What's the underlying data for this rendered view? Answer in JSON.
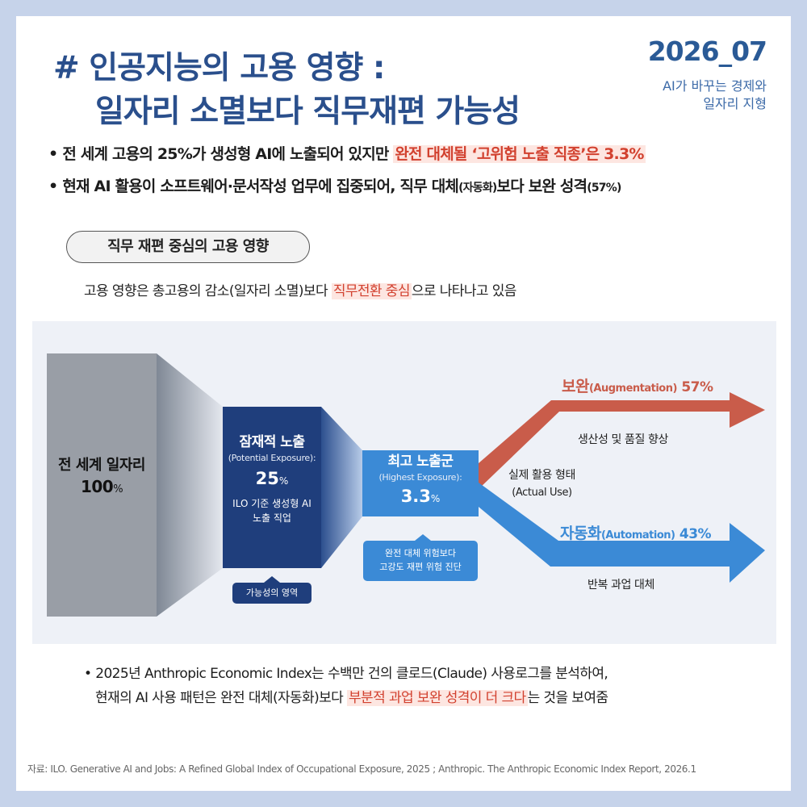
{
  "header": {
    "title_line1": "# 인공지능의 고용 영향 :",
    "title_line2": "일자리 소멸보다 직무재편 가능성",
    "date": "2026_07",
    "series_line1": "AI가 바꾸는 경제와",
    "series_line2": "일자리 지형"
  },
  "bullets": {
    "b1_prefix": "전 세계 고용의 25%가 생성형 AI에 노출되어 있지만 ",
    "b1_highlight": "완전 대체될 ‘고위험 노출 직종’은 3.3%",
    "b2_a": "현재 AI 활용이 소프트웨어·문서작성 업무에 집중되어, 직무 대체",
    "b2_small1": "(자동화)",
    "b2_b": "보다 보완 성격",
    "b2_small2": "(57%)"
  },
  "section": {
    "pill": "직무 재편 중심의 고용 영향",
    "desc_prefix": "고용 영향은 총고용의 감소(일자리 소멸)보다 ",
    "desc_highlight": "직무전환 중심",
    "desc_suffix": "으로 나타나고 있음"
  },
  "diagram": {
    "colors": {
      "gray": "#999ea6",
      "navy": "#1f3e7c",
      "blue": "#3b8ad6",
      "red": "#c95c4a"
    },
    "total": {
      "title": "전 세계 일자리",
      "value": "100",
      "unit": "%"
    },
    "potential": {
      "title": "잠재적 노출",
      "sub": "(Potential Exposure):",
      "value": "25",
      "unit": "%",
      "note1": "ILO 기준 생성형 AI",
      "note2": "노출 직업",
      "callout": "가능성의 영역"
    },
    "highest": {
      "title": "최고 노출군",
      "sub": "(Highest Exposure):",
      "value": "3.3",
      "unit": "%",
      "callout1": "완전 대체 위험보다",
      "callout2": "고강도 재편 위험 진단"
    },
    "actual_use1": "실제 활용 형태",
    "actual_use2": "(Actual Use)",
    "augmentation": {
      "main": "보완",
      "en": "(Augmentation)",
      "pct": " 57%",
      "desc": "생산성 및 품질 향상"
    },
    "automation": {
      "main": "자동화",
      "en": "(Automation)",
      "pct": " 43%",
      "desc": "반복 과업 대체"
    }
  },
  "outro": {
    "line1": "2025년 Anthropic Economic Index는 수백만 건의 클로드(Claude) 사용로그를 분석하여,",
    "line2_prefix": "현재의 AI 사용 패턴은 완전 대체(자동화)보다 ",
    "line2_highlight": "부분적 과업 보완 성격이 더 크다",
    "line2_suffix": "는 것을 보여줌"
  },
  "source": "자료: ILO. Generative AI and Jobs: A Refined Global Index of Occupational Exposure, 2025 ; Anthropic. The Anthropic Economic Index Report, 2026.1"
}
